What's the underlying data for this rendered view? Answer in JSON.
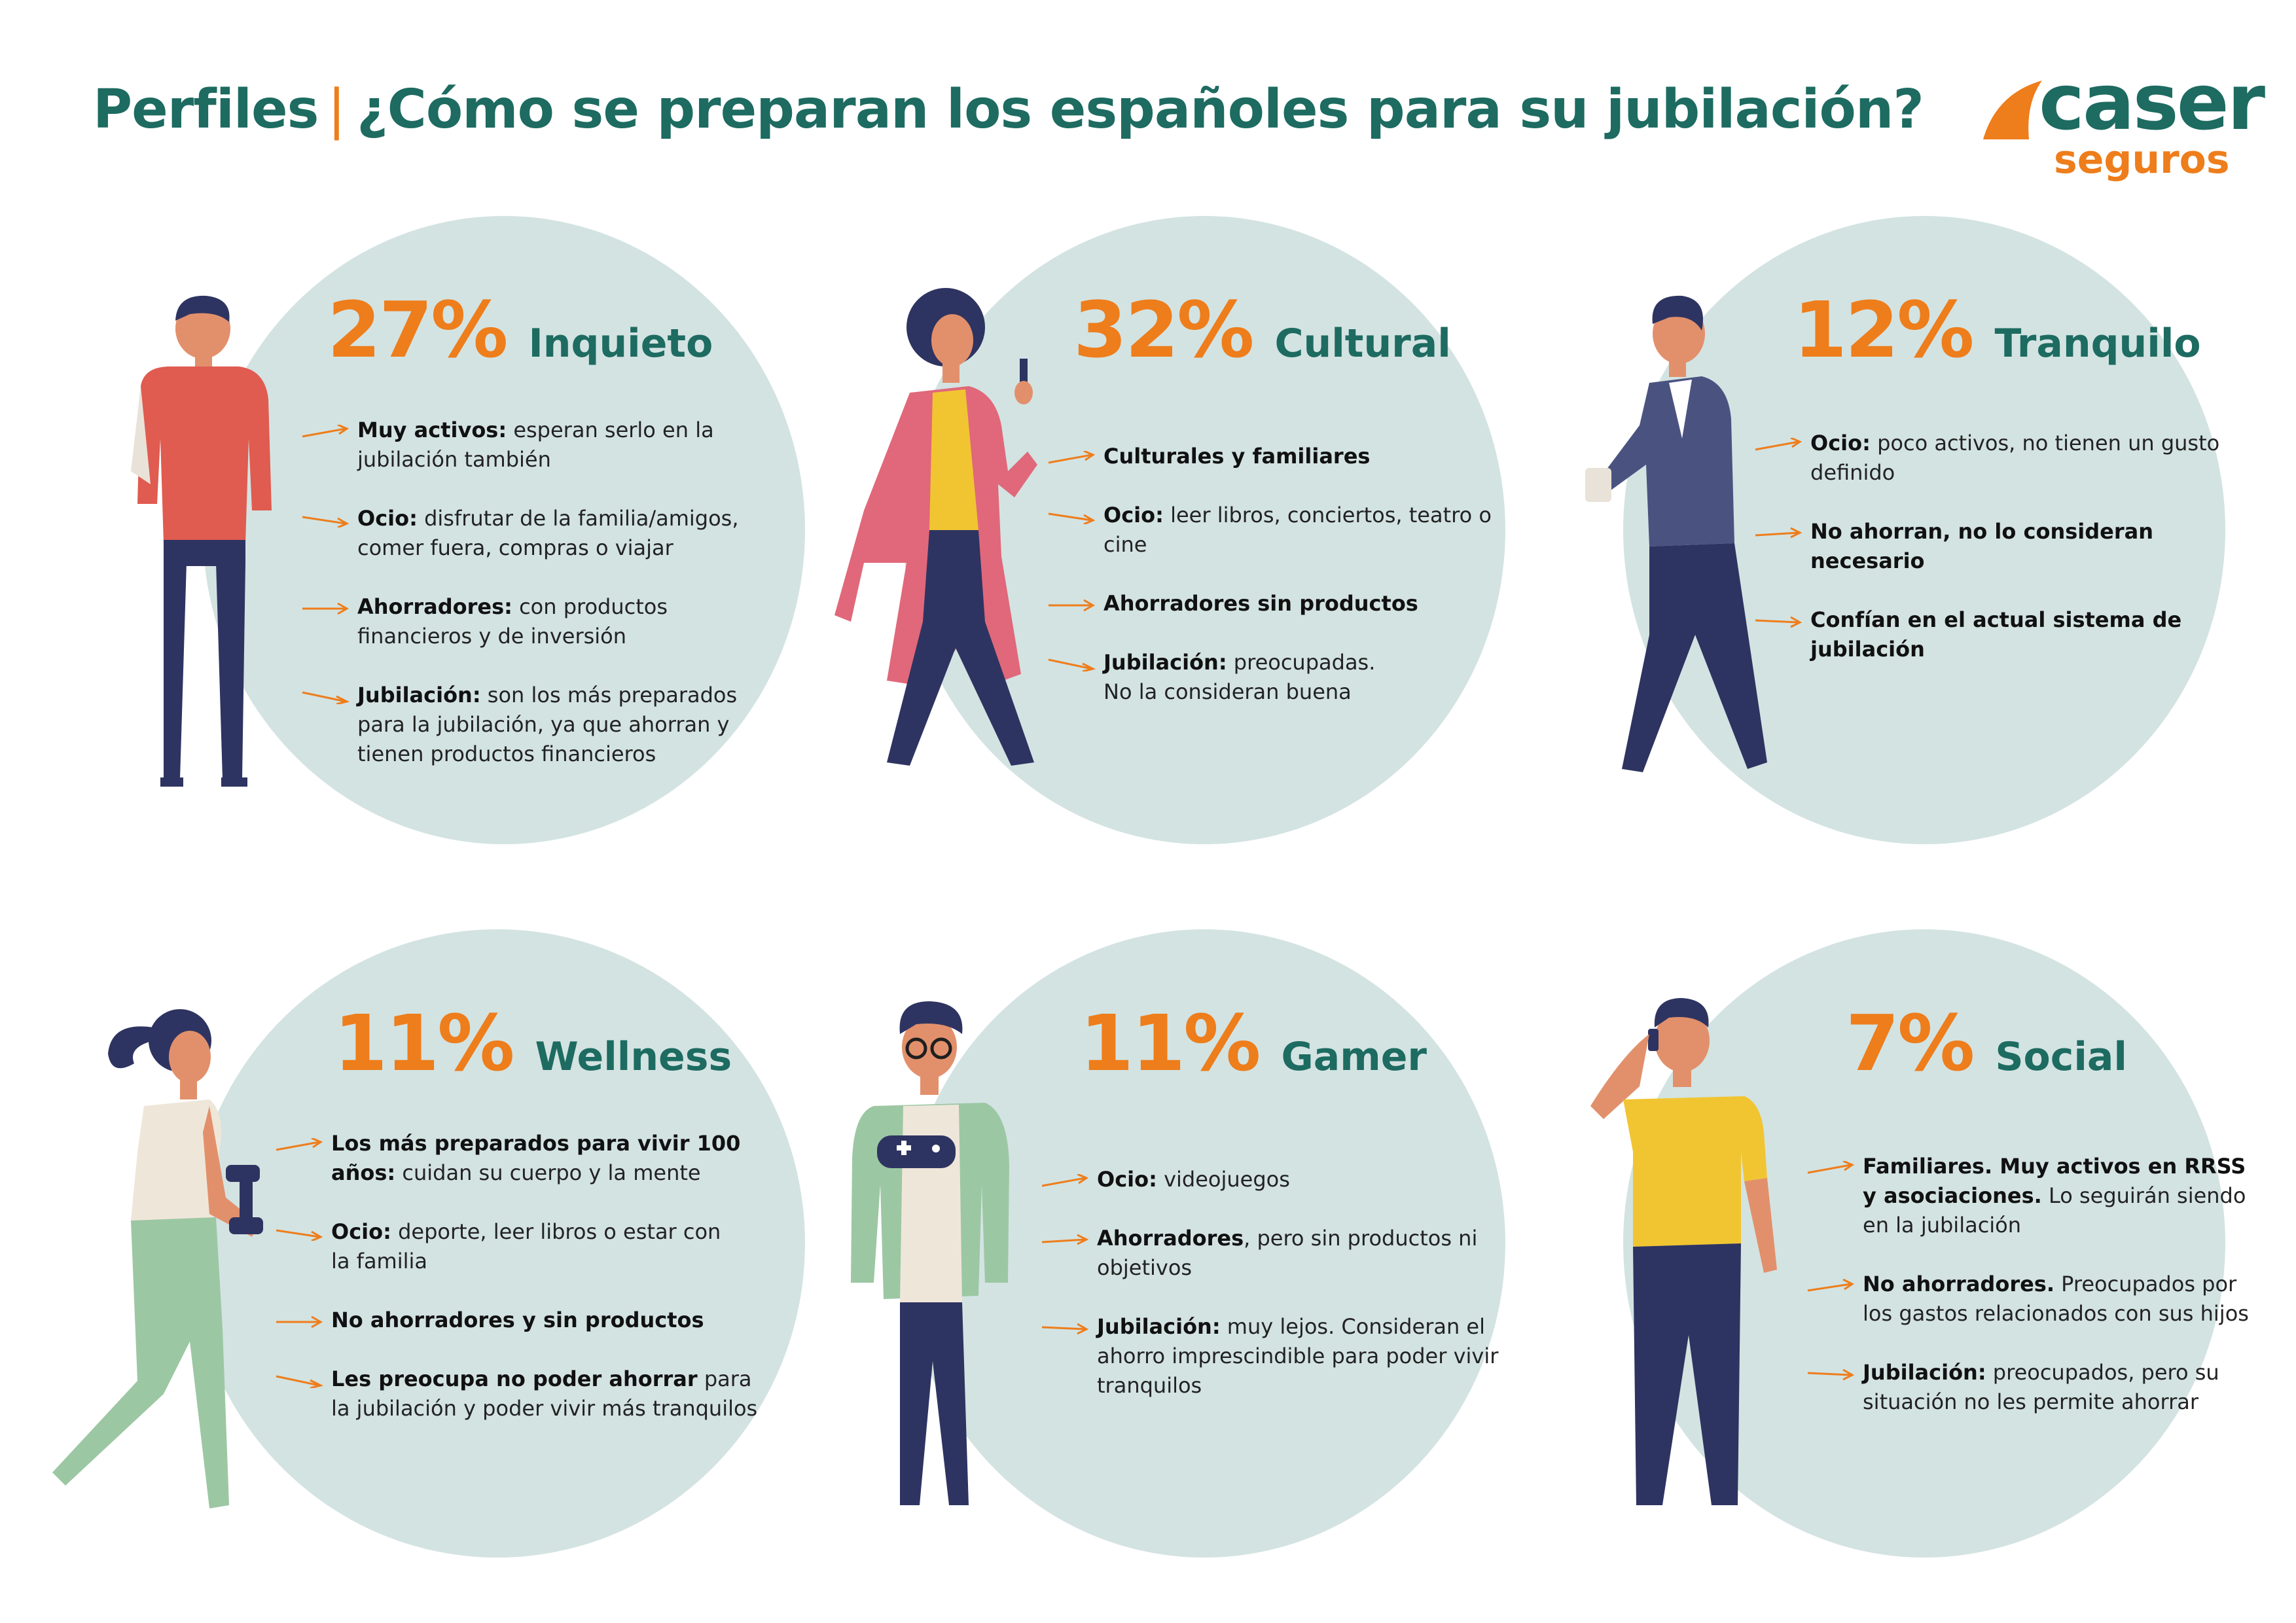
{
  "header": {
    "title_prefix": "Perfiles",
    "title_separator": "|",
    "title_main": "¿Cómo se preparan los españoles para su jubilación?"
  },
  "logo": {
    "brand": "caser",
    "sub": "seguros",
    "color_primary": "#1d6b61",
    "color_accent": "#ee7d1b"
  },
  "profiles": [
    {
      "percent": "27%",
      "name": "Inquieto",
      "figure_icon": "young-man-backpack-icon",
      "items": [
        {
          "bold": "Muy activos:",
          "text": " esperan serlo en la jubilación también"
        },
        {
          "bold": "Ocio:",
          "text": " disfrutar de la familia/amigos, comer fuera, compras o viajar"
        },
        {
          "bold": "Ahorradores:",
          "text": " con productos financieros y de inversión"
        },
        {
          "bold": "Jubilación:",
          "text": " son los más preparados para la jubilación, ya que ahorran y tienen productos financieros"
        }
      ]
    },
    {
      "percent": "32%",
      "name": "Cultural",
      "figure_icon": "woman-phone-walking-icon",
      "items": [
        {
          "bold": "Culturales y familiares",
          "text": ""
        },
        {
          "bold": "Ocio:",
          "text": " leer libros, conciertos, teatro o cine"
        },
        {
          "bold": "Ahorradores sin productos",
          "text": ""
        },
        {
          "bold": "Jubilación:",
          "text": " preocupadas. No la consideran buena"
        }
      ]
    },
    {
      "percent": "12%",
      "name": "Tranquilo",
      "figure_icon": "man-coffee-walking-icon",
      "items": [
        {
          "bold": "Ocio:",
          "text": " poco activos, no tienen un gusto definido"
        },
        {
          "bold": "No ahorran, no lo consideran necesario",
          "text": ""
        },
        {
          "bold": "Confían en el actual sistema de jubilación",
          "text": ""
        }
      ]
    },
    {
      "percent": "11%",
      "name": "Wellness",
      "figure_icon": "woman-dumbbell-icon",
      "items": [
        {
          "bold": "Los más preparados para vivir 100 años:",
          "text": " cuidan su cuerpo y la mente"
        },
        {
          "bold": "Ocio:",
          "text": " deporte, leer libros o estar con la familia"
        },
        {
          "bold": "No ahorradores y sin productos",
          "text": ""
        },
        {
          "bold": "Les preocupa no poder ahorrar",
          "text": " para la jubilación y poder vivir más tranquilos"
        }
      ]
    },
    {
      "percent": "11%",
      "name": "Gamer",
      "figure_icon": "man-gamepad-icon",
      "items": [
        {
          "bold": "Ocio:",
          "text": " videojuegos"
        },
        {
          "bold": "Ahorradores",
          "text": ", pero sin productos ni objetivos"
        },
        {
          "bold": "Jubilación:",
          "text": " muy lejos. Consideran el ahorro imprescindible para poder vivir tranquilos"
        }
      ]
    },
    {
      "percent": "7%",
      "name": "Social",
      "figure_icon": "man-phone-call-icon",
      "items": [
        {
          "bold": "Familiares. Muy activos en RRSS y asociaciones.",
          "text": " Lo seguirán siendo en la jubilación"
        },
        {
          "bold": "No ahorradores.",
          "text": " Preocupados por los gastos relacionados con sus hijos"
        },
        {
          "bold": "Jubilación:",
          "text": " preocupados, pero su situación no les permite ahorrar"
        }
      ]
    }
  ]
}
